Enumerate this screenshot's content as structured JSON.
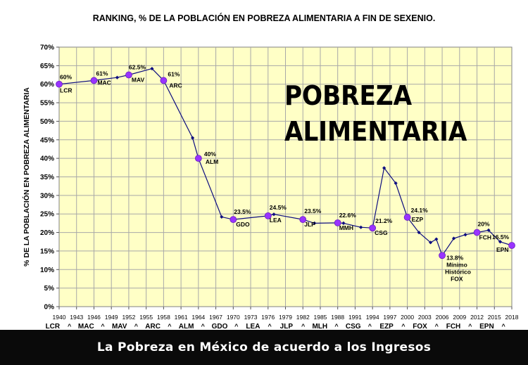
{
  "footer": {
    "caption": "La Pobreza en México de acuerdo a los Ingresos"
  },
  "chart_data": {
    "type": "line",
    "title": "RANKING,  % DE LA POBLACIÓN EN POBREZA ALIMENTARIA A FIN DE SEXENIO.",
    "ylabel": "%  DE LA POBLACIÓN EN POBREZA ALIMENTARIA",
    "xlabel": "",
    "watermark": [
      "POBREZA",
      "ALIMENTARIA"
    ],
    "ylim": [
      0,
      70
    ],
    "xlim": [
      1940,
      2018
    ],
    "y_ticks": [
      0,
      5,
      10,
      15,
      20,
      25,
      30,
      35,
      40,
      45,
      50,
      55,
      60,
      65,
      70
    ],
    "y_tick_labels": [
      "0%",
      "5%",
      "10%",
      "15%",
      "20%",
      "25%",
      "30%",
      "35%",
      "40%",
      "45%",
      "50%",
      "55%",
      "60%",
      "65%",
      "70%"
    ],
    "x_ticks": [
      1940,
      1943,
      1946,
      1949,
      1952,
      1955,
      1958,
      1961,
      1964,
      1967,
      1970,
      1973,
      1976,
      1979,
      1982,
      1985,
      1988,
      1991,
      1994,
      1997,
      2000,
      2003,
      2006,
      2009,
      2012,
      2015,
      2018
    ],
    "x_tick_labels": [
      "1940",
      "1943",
      "1946",
      "1949",
      "1952",
      "1955",
      "1958",
      "1961",
      "1964",
      "1967",
      "1970",
      "1973",
      "1976",
      "1979",
      "1982",
      "1985",
      "1988",
      "1991",
      "1994",
      "1997",
      "2000",
      "2003",
      "2006",
      "2009",
      "2012",
      "2015",
      "2018"
    ],
    "president_row": [
      "LCR",
      "^",
      "MAC",
      "^",
      "MAV",
      "^",
      "ARC",
      "^",
      "ALM",
      "^",
      "GDO",
      "^",
      "LEA",
      "^",
      "JLP",
      "^",
      "MLH",
      "^",
      "CSG",
      "^",
      "EZP",
      "^",
      "FOX",
      "^",
      "FCH",
      "^",
      "EPN",
      "^"
    ],
    "grid": true,
    "colors": {
      "plot_bg": "#ffffc6",
      "line": "#0d0d80",
      "key_point": "#9933ff",
      "grid": "#a8a8a8"
    },
    "series": [
      {
        "values": [
          {
            "x": 1940,
            "y": 60
          },
          {
            "x": 1946,
            "y": 61
          },
          {
            "x": 1950,
            "y": 61.8
          },
          {
            "x": 1952,
            "y": 62.5
          },
          {
            "x": 1956,
            "y": 64.2
          },
          {
            "x": 1958,
            "y": 61
          },
          {
            "x": 1963,
            "y": 45.5
          },
          {
            "x": 1964,
            "y": 40
          },
          {
            "x": 1968,
            "y": 24.2
          },
          {
            "x": 1970,
            "y": 23.5
          },
          {
            "x": 1976,
            "y": 24.5
          },
          {
            "x": 1977,
            "y": 24.9
          },
          {
            "x": 1982,
            "y": 23.5
          },
          {
            "x": 1984,
            "y": 22.5
          },
          {
            "x": 1988,
            "y": 22.6
          },
          {
            "x": 1989,
            "y": 22.5
          },
          {
            "x": 1992,
            "y": 21.4
          },
          {
            "x": 1994,
            "y": 21.2
          },
          {
            "x": 1996,
            "y": 37.4
          },
          {
            "x": 1998,
            "y": 33.3
          },
          {
            "x": 2000,
            "y": 24.1
          },
          {
            "x": 2002,
            "y": 20.0
          },
          {
            "x": 2004,
            "y": 17.3
          },
          {
            "x": 2005,
            "y": 18.2
          },
          {
            "x": 2006,
            "y": 13.8
          },
          {
            "x": 2008,
            "y": 18.4
          },
          {
            "x": 2010,
            "y": 19.4
          },
          {
            "x": 2012,
            "y": 20
          },
          {
            "x": 2014,
            "y": 20.6
          },
          {
            "x": 2016,
            "y": 17.5
          },
          {
            "x": 2018,
            "y": 16.5
          }
        ]
      }
    ],
    "annotations": [
      {
        "x": 1940,
        "y": 60,
        "value_label": "60%",
        "name_label": "LCR"
      },
      {
        "x": 1946,
        "y": 61,
        "value_label": "61%",
        "name_label": "MAC"
      },
      {
        "x": 1952,
        "y": 62.5,
        "value_label": "62.5%",
        "name_label": "MAV"
      },
      {
        "x": 1958,
        "y": 61,
        "value_label": "61%",
        "name_label": "ARC"
      },
      {
        "x": 1964,
        "y": 40,
        "value_label": "40%",
        "name_label": "ALM"
      },
      {
        "x": 1970,
        "y": 23.5,
        "value_label": "23.5%",
        "name_label": "GDO"
      },
      {
        "x": 1976,
        "y": 24.5,
        "value_label": "24.5%",
        "name_label": "LEA"
      },
      {
        "x": 1982,
        "y": 23.5,
        "value_label": "23.5%",
        "name_label": "JLP"
      },
      {
        "x": 1988,
        "y": 22.6,
        "value_label": "22.6%",
        "name_label": "MMH"
      },
      {
        "x": 1994,
        "y": 21.2,
        "value_label": "21.2%",
        "name_label": "CSG"
      },
      {
        "x": 2000,
        "y": 24.1,
        "value_label": "24.1%",
        "name_label": "EZP"
      },
      {
        "x": 2006,
        "y": 13.8,
        "value_label": "13.8%",
        "name_label": "Mínimo",
        "extra_labels": [
          "Histórico",
          "FOX"
        ]
      },
      {
        "x": 2012,
        "y": 20,
        "value_label": "20%",
        "name_label": "FCH"
      },
      {
        "x": 2018,
        "y": 16.5,
        "value_label": "16.5%",
        "name_label": "EPN"
      }
    ]
  }
}
